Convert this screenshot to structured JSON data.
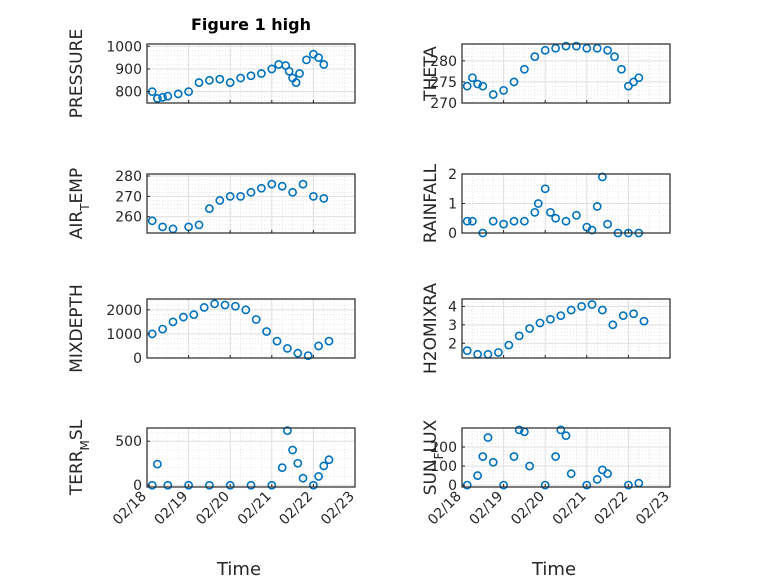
{
  "figure": {
    "title": "Figure 1 high",
    "xlabel": "Time",
    "x_tick_labels": [
      "02/18",
      "02/19",
      "02/20",
      "02/21",
      "02/22",
      "02/23"
    ]
  },
  "colors": {
    "marker": "#0072BD",
    "axis": "#262626",
    "grid": "#dfdfdf",
    "minor_grid": "#d9d9d9"
  },
  "chart_data": [
    {
      "type": "scatter",
      "title": "Figure 1 high",
      "xlabel": "",
      "ylabel": "PRESSURE",
      "xlim": [
        "2014-02-18",
        "2014-02-23"
      ],
      "ylim": [
        750,
        1010
      ],
      "yticks": [
        800,
        900,
        1000
      ],
      "grid": true,
      "x": [
        "2014-02-18 03:00",
        "2014-02-18 06:00",
        "2014-02-18 09:00",
        "2014-02-18 12:00",
        "2014-02-18 18:00",
        "2014-02-19 00:00",
        "2014-02-19 06:00",
        "2014-02-19 12:00",
        "2014-02-19 18:00",
        "2014-02-20 00:00",
        "2014-02-20 06:00",
        "2014-02-20 12:00",
        "2014-02-20 18:00",
        "2014-02-21 00:00",
        "2014-02-21 04:00",
        "2014-02-21 08:00",
        "2014-02-21 10:00",
        "2014-02-21 12:00",
        "2014-02-21 14:00",
        "2014-02-21 16:00",
        "2014-02-21 20:00",
        "2014-02-22 00:00",
        "2014-02-22 03:00",
        "2014-02-22 06:00"
      ],
      "y": [
        800,
        770,
        775,
        780,
        790,
        800,
        840,
        850,
        855,
        840,
        860,
        870,
        880,
        900,
        920,
        915,
        890,
        860,
        840,
        880,
        940,
        965,
        950,
        920
      ]
    },
    {
      "type": "scatter",
      "title": "",
      "xlabel": "",
      "ylabel": "THETA",
      "xlim": [
        "2014-02-18",
        "2014-02-23"
      ],
      "ylim": [
        270,
        284
      ],
      "yticks": [
        270,
        275,
        280
      ],
      "grid": true,
      "x": [
        "2014-02-18 03:00",
        "2014-02-18 06:00",
        "2014-02-18 09:00",
        "2014-02-18 12:00",
        "2014-02-18 18:00",
        "2014-02-19 00:00",
        "2014-02-19 06:00",
        "2014-02-19 12:00",
        "2014-02-19 18:00",
        "2014-02-20 00:00",
        "2014-02-20 06:00",
        "2014-02-20 12:00",
        "2014-02-20 18:00",
        "2014-02-21 00:00",
        "2014-02-21 06:00",
        "2014-02-21 12:00",
        "2014-02-21 16:00",
        "2014-02-21 20:00",
        "2014-02-22 00:00",
        "2014-02-22 03:00",
        "2014-02-22 06:00"
      ],
      "y": [
        274,
        276,
        274.5,
        274,
        272,
        273,
        275,
        278,
        281,
        282.5,
        283,
        283.5,
        283.5,
        283,
        283,
        282.5,
        281,
        278,
        274,
        275,
        276
      ]
    },
    {
      "type": "scatter",
      "title": "",
      "xlabel": "",
      "ylabel": "AIR_TEMP",
      "xlim": [
        "2014-02-18",
        "2014-02-23"
      ],
      "ylim": [
        252,
        281
      ],
      "yticks": [
        260,
        270,
        280
      ],
      "grid": true,
      "x": [
        "2014-02-18 03:00",
        "2014-02-18 09:00",
        "2014-02-18 15:00",
        "2014-02-19 00:00",
        "2014-02-19 06:00",
        "2014-02-19 12:00",
        "2014-02-19 18:00",
        "2014-02-20 00:00",
        "2014-02-20 06:00",
        "2014-02-20 12:00",
        "2014-02-20 18:00",
        "2014-02-21 00:00",
        "2014-02-21 06:00",
        "2014-02-21 12:00",
        "2014-02-21 18:00",
        "2014-02-22 00:00",
        "2014-02-22 06:00"
      ],
      "y": [
        258,
        255,
        254,
        255,
        256,
        264,
        268,
        270,
        270,
        272,
        274,
        276,
        275,
        272,
        276,
        270,
        269
      ]
    },
    {
      "type": "scatter",
      "title": "",
      "xlabel": "",
      "ylabel": "RAINFALL",
      "xlim": [
        "2014-02-18",
        "2014-02-23"
      ],
      "ylim": [
        0,
        2
      ],
      "yticks": [
        0,
        1,
        2
      ],
      "grid": true,
      "x": [
        "2014-02-18 03:00",
        "2014-02-18 06:00",
        "2014-02-18 12:00",
        "2014-02-18 18:00",
        "2014-02-19 00:00",
        "2014-02-19 06:00",
        "2014-02-19 12:00",
        "2014-02-19 18:00",
        "2014-02-19 20:00",
        "2014-02-20 00:00",
        "2014-02-20 03:00",
        "2014-02-20 06:00",
        "2014-02-20 12:00",
        "2014-02-20 18:00",
        "2014-02-21 00:00",
        "2014-02-21 03:00",
        "2014-02-21 06:00",
        "2014-02-21 09:00",
        "2014-02-21 12:00",
        "2014-02-21 18:00",
        "2014-02-22 00:00",
        "2014-02-22 06:00"
      ],
      "y": [
        0.4,
        0.4,
        0,
        0.4,
        0.3,
        0.4,
        0.4,
        0.7,
        1.0,
        1.5,
        0.7,
        0.5,
        0.4,
        0.6,
        0.2,
        0.1,
        0.9,
        1.9,
        0.3,
        0,
        0,
        0
      ]
    },
    {
      "type": "scatter",
      "title": "",
      "xlabel": "",
      "ylabel": "MIXDEPTH",
      "xlim": [
        "2014-02-18",
        "2014-02-23"
      ],
      "ylim": [
        0,
        2450
      ],
      "yticks": [
        0,
        1000,
        2000
      ],
      "grid": true,
      "x": [
        "2014-02-18 03:00",
        "2014-02-18 09:00",
        "2014-02-18 15:00",
        "2014-02-18 21:00",
        "2014-02-19 03:00",
        "2014-02-19 09:00",
        "2014-02-19 15:00",
        "2014-02-19 21:00",
        "2014-02-20 03:00",
        "2014-02-20 09:00",
        "2014-02-20 15:00",
        "2014-02-20 21:00",
        "2014-02-21 03:00",
        "2014-02-21 09:00",
        "2014-02-21 15:00",
        "2014-02-21 21:00",
        "2014-02-22 03:00",
        "2014-02-22 09:00"
      ],
      "y": [
        1000,
        1200,
        1500,
        1700,
        1800,
        2100,
        2250,
        2200,
        2150,
        2000,
        1600,
        1100,
        700,
        400,
        200,
        100,
        500,
        700
      ]
    },
    {
      "type": "scatter",
      "title": "",
      "xlabel": "",
      "ylabel": "H2OMIXRA",
      "xlim": [
        "2014-02-18",
        "2014-02-23"
      ],
      "ylim": [
        1.2,
        4.4
      ],
      "yticks": [
        2,
        3,
        4
      ],
      "grid": true,
      "x": [
        "2014-02-18 03:00",
        "2014-02-18 09:00",
        "2014-02-18 15:00",
        "2014-02-18 21:00",
        "2014-02-19 03:00",
        "2014-02-19 09:00",
        "2014-02-19 15:00",
        "2014-02-19 21:00",
        "2014-02-20 03:00",
        "2014-02-20 09:00",
        "2014-02-20 15:00",
        "2014-02-20 21:00",
        "2014-02-21 03:00",
        "2014-02-21 09:00",
        "2014-02-21 15:00",
        "2014-02-21 21:00",
        "2014-02-22 03:00",
        "2014-02-22 09:00"
      ],
      "y": [
        1.6,
        1.4,
        1.4,
        1.5,
        1.9,
        2.4,
        2.8,
        3.1,
        3.3,
        3.5,
        3.8,
        4.0,
        4.1,
        3.8,
        3.0,
        3.5,
        3.6,
        3.2
      ]
    },
    {
      "type": "scatter",
      "title": "",
      "xlabel": "",
      "ylabel": "TERR_MSL",
      "xlim": [
        "2014-02-18",
        "2014-02-23"
      ],
      "ylim": [
        -20,
        650
      ],
      "yticks": [
        0,
        500
      ],
      "grid": true,
      "x": [
        "2014-02-18 03:00",
        "2014-02-18 06:00",
        "2014-02-18 12:00",
        "2014-02-19 00:00",
        "2014-02-19 12:00",
        "2014-02-20 00:00",
        "2014-02-20 12:00",
        "2014-02-21 00:00",
        "2014-02-21 06:00",
        "2014-02-21 09:00",
        "2014-02-21 12:00",
        "2014-02-21 15:00",
        "2014-02-21 18:00",
        "2014-02-22 00:00",
        "2014-02-22 03:00",
        "2014-02-22 06:00",
        "2014-02-22 09:00"
      ],
      "y": [
        0,
        240,
        0,
        0,
        0,
        0,
        0,
        0,
        200,
        620,
        400,
        250,
        80,
        0,
        100,
        220,
        290
      ]
    },
    {
      "type": "scatter",
      "title": "",
      "xlabel": "",
      "ylabel": "SUN_FLUX",
      "xlim": [
        "2014-02-18",
        "2014-02-23"
      ],
      "ylim": [
        -10,
        300
      ],
      "yticks": [
        0,
        100,
        200
      ],
      "grid": true,
      "x": [
        "2014-02-18 03:00",
        "2014-02-18 09:00",
        "2014-02-18 12:00",
        "2014-02-18 15:00",
        "2014-02-18 18:00",
        "2014-02-19 00:00",
        "2014-02-19 06:00",
        "2014-02-19 09:00",
        "2014-02-19 12:00",
        "2014-02-19 15:00",
        "2014-02-20 00:00",
        "2014-02-20 06:00",
        "2014-02-20 09:00",
        "2014-02-20 12:00",
        "2014-02-20 15:00",
        "2014-02-21 00:00",
        "2014-02-21 06:00",
        "2014-02-21 09:00",
        "2014-02-21 12:00",
        "2014-02-22 00:00",
        "2014-02-22 06:00"
      ],
      "y": [
        0,
        50,
        150,
        250,
        120,
        0,
        150,
        290,
        280,
        100,
        0,
        150,
        290,
        260,
        60,
        0,
        30,
        80,
        60,
        0,
        10
      ]
    }
  ]
}
